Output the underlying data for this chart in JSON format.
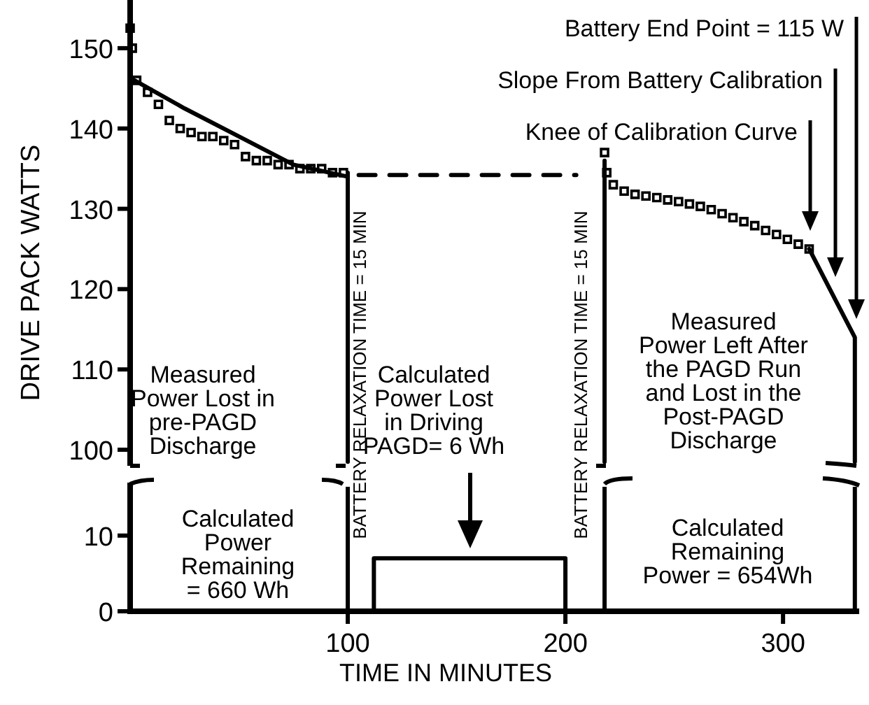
{
  "chart_data": [
    {
      "type": "line",
      "ylabel": "DRIVE PACK WATTS",
      "xlim": [
        0,
        335
      ],
      "ylim": [
        98,
        156
      ],
      "yticks": [
        100,
        110,
        120,
        130,
        140,
        150
      ],
      "tick_labels": "y",
      "series": [
        {
          "type": "scatter",
          "marker": "square",
          "color": "#000000",
          "x": [
            0,
            1,
            3,
            8,
            13,
            18,
            23,
            28,
            33,
            38,
            43,
            48,
            53,
            58,
            63,
            68,
            73,
            78,
            83,
            88,
            93,
            98
          ],
          "values": [
            152.5,
            150,
            146,
            144.5,
            143,
            141,
            140,
            139.5,
            139,
            139,
            138.5,
            138,
            136.5,
            136,
            136,
            135.5,
            135.5,
            135,
            135,
            135,
            134.5,
            134.5
          ]
        },
        {
          "marker": "none",
          "line_style": "solid",
          "color": "#000000",
          "x": [
            2,
            25,
            50,
            75,
            100
          ],
          "values": [
            146,
            142.5,
            139,
            135.5,
            134
          ]
        },
        {
          "type": "scatter",
          "marker": "square",
          "color": "#000000",
          "x": [
            218,
            219,
            222,
            227,
            232,
            237,
            242,
            247,
            252,
            257,
            262,
            267,
            272,
            277,
            282,
            287,
            292,
            297,
            302,
            307,
            312
          ],
          "values": [
            137,
            134.5,
            133,
            132.2,
            131.8,
            131.6,
            131.4,
            131.1,
            130.9,
            130.6,
            130.3,
            129.9,
            129.4,
            128.9,
            128.4,
            127.9,
            127.3,
            126.8,
            126.2,
            125.6,
            125
          ]
        },
        {
          "marker": "none",
          "line_style": "solid",
          "color": "#000000",
          "x": [
            312,
            324,
            333,
            333
          ],
          "values": [
            125,
            118.7,
            114,
            98.5
          ]
        },
        {
          "marker": "none",
          "line_style": "dashed",
          "color": "#000000",
          "x": [
            105,
            205
          ],
          "values": [
            134.2,
            134.2
          ]
        },
        {
          "marker": "none",
          "line_style": "solid",
          "color": "#000000",
          "x": [
            100,
            100
          ],
          "values": [
            134.5,
            98.5
          ]
        },
        {
          "marker": "none",
          "line_style": "solid",
          "color": "#000000",
          "x": [
            218,
            218
          ],
          "values": [
            136,
            98.5
          ]
        }
      ],
      "annotations": [
        "Measured\nPower Lost in\npre-PAGD\nDischarge",
        "Calculated\nPower Lost\nin Driving\nPAGD= 6 Wh",
        "Measured\nPower Left After\nthe PAGD Run\nand Lost in the\nPost-PAGD\nDischarge",
        "BATTERY RELAXATION TIME = 15 MIN",
        "BATTERY RELAXATION TIME = 15 MIN",
        "Battery End Point = 115 W",
        "Slope From Battery Calibration",
        "Knee of Calibration Curve"
      ]
    },
    {
      "type": "line",
      "xlabel": "TIME IN MINUTES",
      "xlim": [
        0,
        335
      ],
      "xticks": [
        100,
        200,
        300
      ],
      "ylim": [
        0,
        17
      ],
      "yticks": [
        0,
        10
      ],
      "series": [
        {
          "marker": "none",
          "line_style": "solid",
          "color": "#000000",
          "x": [
            112,
            112,
            200,
            200
          ],
          "values": [
            0,
            7,
            7,
            0
          ]
        }
      ],
      "ref_lines": [
        {
          "axis": "x",
          "value": 100,
          "color": "#000000",
          "line_style": "solid"
        },
        {
          "axis": "x",
          "value": 218,
          "color": "#000000",
          "line_style": "solid"
        },
        {
          "axis": "x",
          "value": 333,
          "color": "#000000",
          "line_style": "solid"
        }
      ],
      "annotations": [
        "Calculated\nPower\nRemaining\n= 660 Wh",
        "Calculated\nRemaining\nPower = 654Wh"
      ]
    }
  ]
}
